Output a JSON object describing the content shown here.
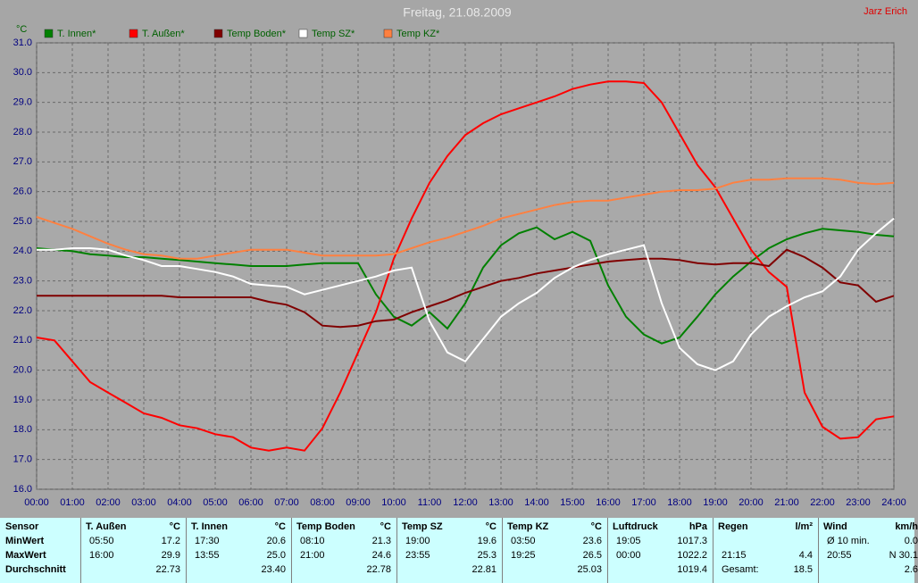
{
  "chart_data": {
    "type": "line",
    "title": "Freitag, 21.08.2009",
    "author": "Jarz Erich",
    "y_label": "°C",
    "x": [
      0,
      0.5,
      1,
      1.5,
      2,
      2.5,
      3,
      3.5,
      4,
      4.5,
      5,
      5.5,
      6,
      6.5,
      7,
      7.5,
      8,
      8.5,
      9,
      9.5,
      10,
      10.5,
      11,
      11.5,
      12,
      12.5,
      13,
      13.5,
      14,
      14.5,
      15,
      15.5,
      16,
      16.5,
      17,
      17.5,
      18,
      18.5,
      19,
      19.5,
      20,
      20.5,
      21,
      21.5,
      22,
      22.5,
      23,
      23.5,
      24
    ],
    "series": [
      {
        "name": "T. Innen*",
        "color": "#008000",
        "values": [
          24.1,
          24.05,
          24.0,
          23.9,
          23.85,
          23.8,
          23.8,
          23.75,
          23.7,
          23.65,
          23.6,
          23.55,
          23.5,
          23.5,
          23.5,
          23.55,
          23.6,
          23.6,
          23.6,
          22.55,
          21.8,
          21.5,
          21.95,
          21.4,
          22.25,
          23.45,
          24.2,
          24.6,
          24.8,
          24.4,
          24.65,
          24.35,
          22.85,
          21.8,
          21.2,
          20.9,
          21.1,
          21.8,
          22.55,
          23.15,
          23.65,
          24.1,
          24.4,
          24.6,
          24.75,
          24.7,
          24.65,
          24.55,
          24.5
        ]
      },
      {
        "name": "T. Außen*",
        "color": "#ff0000",
        "values": [
          21.1,
          21.0,
          20.3,
          19.6,
          19.25,
          18.9,
          18.55,
          18.4,
          18.15,
          18.05,
          17.85,
          17.75,
          17.4,
          17.3,
          17.4,
          17.3,
          18.05,
          19.25,
          20.6,
          21.95,
          23.75,
          25.1,
          26.3,
          27.2,
          27.9,
          28.3,
          28.6,
          28.8,
          29.0,
          29.2,
          29.45,
          29.6,
          29.7,
          29.7,
          29.65,
          29.0,
          27.95,
          26.9,
          26.15,
          25.1,
          24.05,
          23.3,
          22.8,
          19.25,
          18.1,
          17.7,
          17.75,
          18.35,
          18.45
        ]
      },
      {
        "name": "Temp Boden*",
        "color": "#800000",
        "values": [
          22.5,
          22.5,
          22.5,
          22.5,
          22.5,
          22.5,
          22.5,
          22.5,
          22.45,
          22.45,
          22.45,
          22.45,
          22.45,
          22.3,
          22.2,
          21.95,
          21.5,
          21.45,
          21.5,
          21.65,
          21.7,
          21.95,
          22.15,
          22.35,
          22.6,
          22.8,
          23.0,
          23.1,
          23.25,
          23.35,
          23.45,
          23.55,
          23.65,
          23.7,
          23.75,
          23.75,
          23.7,
          23.6,
          23.55,
          23.6,
          23.6,
          23.5,
          24.05,
          23.8,
          23.45,
          22.95,
          22.85,
          22.3,
          22.5
        ]
      },
      {
        "name": "Temp SZ*",
        "color": "#ffffff",
        "values": [
          24.05,
          24.05,
          24.1,
          24.1,
          24.05,
          23.85,
          23.7,
          23.5,
          23.5,
          23.4,
          23.3,
          23.15,
          22.9,
          22.85,
          22.8,
          22.55,
          22.7,
          22.85,
          23.0,
          23.15,
          23.35,
          23.45,
          21.65,
          20.6,
          20.3,
          21.05,
          21.8,
          22.25,
          22.6,
          23.1,
          23.45,
          23.7,
          23.9,
          24.05,
          24.2,
          22.25,
          20.75,
          20.2,
          20.0,
          20.3,
          21.2,
          21.8,
          22.15,
          22.45,
          22.65,
          23.15,
          24.05,
          24.6,
          25.1
        ]
      },
      {
        "name": "Temp KZ*",
        "color": "#ff8040",
        "values": [
          25.15,
          24.95,
          24.75,
          24.5,
          24.25,
          24.05,
          23.9,
          23.85,
          23.75,
          23.75,
          23.85,
          23.95,
          24.05,
          24.05,
          24.05,
          23.95,
          23.85,
          23.85,
          23.85,
          23.85,
          23.9,
          24.1,
          24.3,
          24.45,
          24.65,
          24.85,
          25.1,
          25.25,
          25.4,
          25.55,
          25.65,
          25.7,
          25.7,
          25.8,
          25.9,
          26.0,
          26.05,
          26.05,
          26.1,
          26.3,
          26.4,
          26.4,
          26.45,
          26.45,
          26.45,
          26.4,
          26.3,
          26.25,
          26.3
        ]
      }
    ],
    "xlim": [
      0,
      24
    ],
    "xticks": [
      {
        "value": 0,
        "label": "00:00"
      },
      {
        "value": 1,
        "label": "01:00"
      },
      {
        "value": 2,
        "label": "02:00"
      },
      {
        "value": 3,
        "label": "03:00"
      },
      {
        "value": 4,
        "label": "04:00"
      },
      {
        "value": 5,
        "label": "05:00"
      },
      {
        "value": 6,
        "label": "06:00"
      },
      {
        "value": 7,
        "label": "07:00"
      },
      {
        "value": 8,
        "label": "08:00"
      },
      {
        "value": 9,
        "label": "09:00"
      },
      {
        "value": 10,
        "label": "10:00"
      },
      {
        "value": 11,
        "label": "11:00"
      },
      {
        "value": 12,
        "label": "12:00"
      },
      {
        "value": 13,
        "label": "13:00"
      },
      {
        "value": 14,
        "label": "14:00"
      },
      {
        "value": 15,
        "label": "15:00"
      },
      {
        "value": 16,
        "label": "16:00"
      },
      {
        "value": 17,
        "label": "17:00"
      },
      {
        "value": 18,
        "label": "18:00"
      },
      {
        "value": 19,
        "label": "19:00"
      },
      {
        "value": 20,
        "label": "20:00"
      },
      {
        "value": 21,
        "label": "21:00"
      },
      {
        "value": 22,
        "label": "22:00"
      },
      {
        "value": 23,
        "label": "23:00"
      },
      {
        "value": 24,
        "label": "24:00"
      }
    ],
    "ylim": [
      16,
      31
    ],
    "yticks": [
      {
        "value": 16,
        "label": "16.0"
      },
      {
        "value": 17,
        "label": "17.0"
      },
      {
        "value": 18,
        "label": "18.0"
      },
      {
        "value": 19,
        "label": "19.0"
      },
      {
        "value": 20,
        "label": "20.0"
      },
      {
        "value": 21,
        "label": "21.0"
      },
      {
        "value": 22,
        "label": "22.0"
      },
      {
        "value": 23,
        "label": "23.0"
      },
      {
        "value": 24,
        "label": "24.0"
      },
      {
        "value": 25,
        "label": "25.0"
      },
      {
        "value": 26,
        "label": "26.0"
      },
      {
        "value": 27,
        "label": "27.0"
      },
      {
        "value": 28,
        "label": "28.0"
      },
      {
        "value": 29,
        "label": "29.0"
      },
      {
        "value": 30,
        "label": "30.0"
      },
      {
        "value": 31,
        "label": "31.0"
      }
    ],
    "grid": true
  },
  "stats_table": {
    "row_labels": [
      "Sensor",
      "MinWert",
      "MaxWert",
      "Durchschnitt"
    ],
    "sections": [
      {
        "header": "T. Außen",
        "unit": "°C",
        "min": [
          "05:50",
          "17.2"
        ],
        "max": [
          "16:00",
          "29.9"
        ],
        "avg": [
          null,
          "22.73"
        ]
      },
      {
        "header": "T. Innen",
        "unit": "°C",
        "min": [
          "17:30",
          "20.6"
        ],
        "max": [
          "13:55",
          "25.0"
        ],
        "avg": [
          null,
          "23.40"
        ]
      },
      {
        "header": "Temp Boden",
        "unit": "°C",
        "min": [
          "08:10",
          "21.3"
        ],
        "max": [
          "21:00",
          "24.6"
        ],
        "avg": [
          null,
          "22.78"
        ]
      },
      {
        "header": "Temp SZ",
        "unit": "°C",
        "min": [
          "19:00",
          "19.6"
        ],
        "max": [
          "23:55",
          "25.3"
        ],
        "avg": [
          null,
          "22.81"
        ]
      },
      {
        "header": "Temp KZ",
        "unit": "°C",
        "min": [
          "03:50",
          "23.6"
        ],
        "max": [
          "19:25",
          "26.5"
        ],
        "avg": [
          null,
          "25.03"
        ]
      },
      {
        "header": "Luftdruck",
        "unit": "hPa",
        "min": [
          "19:05",
          "1017.3"
        ],
        "max": [
          "00:00",
          "1022.2"
        ],
        "avg": [
          null,
          "1019.4"
        ]
      },
      {
        "header": "Regen",
        "unit": "l/m²",
        "min": [
          null,
          null
        ],
        "max": [
          "21:15",
          "4.4"
        ],
        "avg": [
          "Gesamt:",
          "18.5"
        ]
      },
      {
        "header": "Wind",
        "unit": "km/h",
        "min": [
          "Ø 10 min.",
          "0.0"
        ],
        "max": [
          "20:55",
          "N 30.1"
        ],
        "avg": [
          null,
          "2.6"
        ]
      }
    ]
  }
}
